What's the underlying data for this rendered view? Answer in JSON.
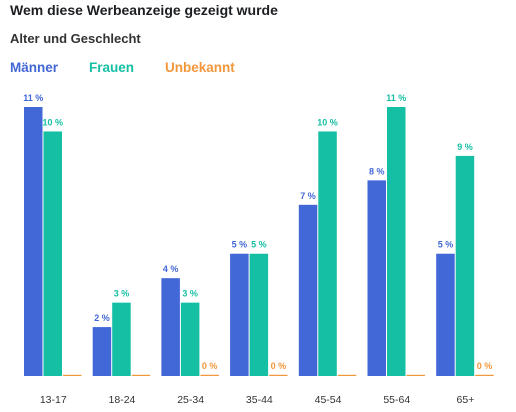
{
  "title": "Wem diese Werbeanzeige gezeigt wurde",
  "subtitle": "Alter und Geschlecht",
  "legend": [
    {
      "label": "Männer",
      "color": "#4267d6"
    },
    {
      "label": "Frauen",
      "color": "#14bfa3"
    },
    {
      "label": "Unbekannt",
      "color": "#f2973c"
    }
  ],
  "chart_data": {
    "type": "bar",
    "categories": [
      "13-17",
      "18-24",
      "25-34",
      "35-44",
      "45-54",
      "55-64",
      "65+"
    ],
    "series": [
      {
        "name": "Männer",
        "color": "#4267d6",
        "values": [
          11,
          2,
          4,
          5,
          7,
          8,
          5
        ],
        "labels": [
          "11 %",
          "2 %",
          "4 %",
          "5 %",
          "7 %",
          "8 %",
          "5 %"
        ]
      },
      {
        "name": "Frauen",
        "color": "#14bfa3",
        "values": [
          10,
          3,
          3,
          5,
          10,
          11,
          9
        ],
        "labels": [
          "10 %",
          "3 %",
          "3 %",
          "5 %",
          "10 %",
          "11 %",
          "9 %"
        ]
      },
      {
        "name": "Unbekannt",
        "color": "#f2973c",
        "values": [
          0,
          0,
          0,
          0,
          0,
          0,
          0
        ],
        "labels": [
          "",
          "",
          "0 %",
          "0 %",
          "",
          "",
          "0 %"
        ]
      }
    ],
    "ylim": [
      0,
      11
    ],
    "grid": false,
    "legend_position": "top-left"
  }
}
